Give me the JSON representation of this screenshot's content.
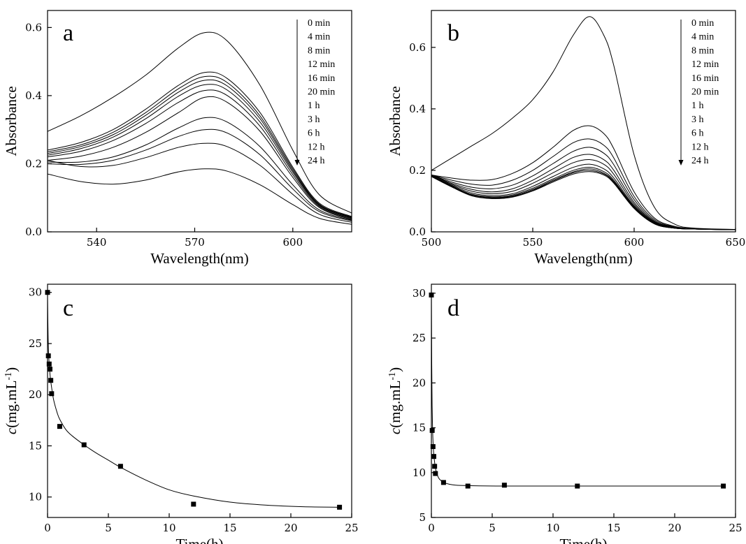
{
  "chart_data": [
    {
      "panel": "a",
      "type": "line",
      "xlabel": "Wavelength(nm)",
      "ylabel": "Absorbance",
      "xlim": [
        525,
        618
      ],
      "ylim": [
        0,
        0.65
      ],
      "xticks": [
        540,
        570,
        600
      ],
      "yticks": [
        0.0,
        0.2,
        0.4,
        0.6
      ],
      "legend": [
        "0 min",
        "4 min",
        "8 min",
        "12 min",
        "16 min",
        "20 min",
        "1 h",
        "3 h",
        "6 h",
        "12 h",
        "24 h"
      ],
      "legend_placement": "top-right",
      "legend_arrow": "down",
      "x": [
        525,
        535,
        545,
        555,
        565,
        573,
        580,
        590,
        600,
        608,
        618
      ],
      "series": [
        {
          "values": [
            0.295,
            0.34,
            0.395,
            0.46,
            0.54,
            0.585,
            0.56,
            0.43,
            0.24,
            0.11,
            0.055
          ]
        },
        {
          "values": [
            0.24,
            0.262,
            0.3,
            0.36,
            0.43,
            0.468,
            0.45,
            0.35,
            0.19,
            0.085,
            0.045
          ]
        },
        {
          "values": [
            0.235,
            0.255,
            0.292,
            0.35,
            0.42,
            0.456,
            0.438,
            0.34,
            0.185,
            0.082,
            0.043
          ]
        },
        {
          "values": [
            0.23,
            0.25,
            0.285,
            0.342,
            0.41,
            0.445,
            0.428,
            0.332,
            0.18,
            0.08,
            0.042
          ]
        },
        {
          "values": [
            0.225,
            0.244,
            0.278,
            0.332,
            0.398,
            0.432,
            0.416,
            0.322,
            0.175,
            0.078,
            0.04
          ]
        },
        {
          "values": [
            0.22,
            0.236,
            0.268,
            0.318,
            0.38,
            0.415,
            0.4,
            0.31,
            0.168,
            0.075,
            0.038
          ]
        },
        {
          "values": [
            0.21,
            0.222,
            0.248,
            0.292,
            0.35,
            0.395,
            0.38,
            0.295,
            0.16,
            0.072,
            0.036
          ]
        },
        {
          "values": [
            0.205,
            0.205,
            0.22,
            0.255,
            0.305,
            0.335,
            0.322,
            0.25,
            0.138,
            0.065,
            0.034
          ]
        },
        {
          "values": [
            0.2,
            0.198,
            0.21,
            0.24,
            0.28,
            0.3,
            0.29,
            0.226,
            0.126,
            0.06,
            0.032
          ]
        },
        {
          "values": [
            0.21,
            0.192,
            0.195,
            0.218,
            0.248,
            0.26,
            0.25,
            0.195,
            0.11,
            0.052,
            0.028
          ]
        },
        {
          "values": [
            0.17,
            0.148,
            0.14,
            0.152,
            0.176,
            0.185,
            0.178,
            0.138,
            0.08,
            0.04,
            0.022
          ]
        }
      ]
    },
    {
      "panel": "b",
      "type": "line",
      "xlabel": "Wavelength(nm)",
      "ylabel": "Absorbance",
      "xlim": [
        500,
        650
      ],
      "ylim": [
        0,
        0.72
      ],
      "xticks": [
        500,
        550,
        600,
        650
      ],
      "yticks": [
        0.0,
        0.2,
        0.4,
        0.6
      ],
      "legend": [
        "0 min",
        "4 min",
        "8 min",
        "12 min",
        "16 min",
        "20 min",
        "1 h",
        "3 h",
        "6 h",
        "12 h",
        "24 h"
      ],
      "legend_placement": "top-right",
      "legend_arrow": "down",
      "x": [
        500,
        510,
        520,
        530,
        540,
        550,
        560,
        570,
        578,
        585,
        590,
        600,
        610,
        620,
        630,
        650
      ],
      "series": [
        {
          "values": [
            0.2,
            0.24,
            0.28,
            0.32,
            0.37,
            0.43,
            0.52,
            0.64,
            0.7,
            0.64,
            0.54,
            0.25,
            0.08,
            0.025,
            0.012,
            0.008
          ]
        },
        {
          "values": [
            0.185,
            0.175,
            0.168,
            0.17,
            0.19,
            0.225,
            0.275,
            0.33,
            0.345,
            0.32,
            0.27,
            0.13,
            0.045,
            0.018,
            0.01,
            0.007
          ]
        },
        {
          "values": [
            0.185,
            0.168,
            0.155,
            0.152,
            0.168,
            0.2,
            0.245,
            0.29,
            0.302,
            0.282,
            0.24,
            0.115,
            0.04,
            0.016,
            0.01,
            0.007
          ]
        },
        {
          "values": [
            0.185,
            0.162,
            0.145,
            0.14,
            0.152,
            0.182,
            0.222,
            0.262,
            0.275,
            0.256,
            0.218,
            0.105,
            0.036,
            0.015,
            0.01,
            0.007
          ]
        },
        {
          "values": [
            0.185,
            0.158,
            0.138,
            0.13,
            0.14,
            0.168,
            0.205,
            0.242,
            0.252,
            0.235,
            0.2,
            0.096,
            0.033,
            0.014,
            0.009,
            0.007
          ]
        },
        {
          "values": [
            0.185,
            0.155,
            0.132,
            0.124,
            0.132,
            0.158,
            0.192,
            0.225,
            0.235,
            0.22,
            0.187,
            0.09,
            0.031,
            0.013,
            0.009,
            0.007
          ]
        },
        {
          "values": [
            0.183,
            0.152,
            0.126,
            0.118,
            0.124,
            0.148,
            0.18,
            0.21,
            0.22,
            0.205,
            0.175,
            0.085,
            0.029,
            0.013,
            0.009,
            0.007
          ]
        },
        {
          "values": [
            0.182,
            0.15,
            0.122,
            0.114,
            0.12,
            0.142,
            0.172,
            0.2,
            0.21,
            0.196,
            0.168,
            0.082,
            0.028,
            0.012,
            0.009,
            0.007
          ]
        },
        {
          "values": [
            0.181,
            0.148,
            0.12,
            0.112,
            0.117,
            0.138,
            0.168,
            0.195,
            0.205,
            0.191,
            0.164,
            0.08,
            0.027,
            0.012,
            0.009,
            0.007
          ]
        },
        {
          "values": [
            0.18,
            0.147,
            0.118,
            0.11,
            0.115,
            0.135,
            0.165,
            0.192,
            0.2,
            0.188,
            0.161,
            0.078,
            0.026,
            0.012,
            0.009,
            0.007
          ]
        },
        {
          "values": [
            0.18,
            0.146,
            0.117,
            0.108,
            0.113,
            0.133,
            0.162,
            0.188,
            0.196,
            0.185,
            0.158,
            0.076,
            0.026,
            0.012,
            0.009,
            0.007
          ]
        }
      ]
    },
    {
      "panel": "c",
      "type": "scatter",
      "xlabel": "Time(h)",
      "ylabel_italic": "c",
      "ylabel": "(mg.mL",
      "ylabel_sup": "-1",
      "ylabel_close": ")",
      "xlim": [
        0,
        25
      ],
      "ylim": [
        8,
        30.8
      ],
      "xticks": [
        0,
        5,
        10,
        15,
        20,
        25
      ],
      "yticks": [
        10,
        15,
        20,
        25,
        30
      ],
      "points": {
        "x": [
          0,
          0.067,
          0.133,
          0.2,
          0.267,
          0.333,
          1,
          3,
          6,
          12,
          24
        ],
        "y": [
          30,
          23.8,
          23.0,
          22.5,
          21.4,
          20.1,
          16.9,
          15.1,
          13.0,
          9.3,
          9.0
        ]
      },
      "fit": {
        "x": [
          0,
          0.05,
          0.1,
          0.2,
          0.3,
          0.5,
          0.8,
          1,
          1.5,
          2,
          3,
          4,
          5,
          6,
          8,
          10,
          12,
          15,
          18,
          21,
          24
        ],
        "y": [
          29.5,
          25.5,
          23.7,
          22.0,
          21.0,
          19.5,
          18.2,
          17.6,
          16.6,
          16.0,
          15.1,
          14.3,
          13.6,
          12.9,
          11.7,
          10.7,
          10.1,
          9.5,
          9.2,
          9.05,
          9.0
        ]
      }
    },
    {
      "panel": "d",
      "type": "scatter",
      "xlabel": "Time(h)",
      "ylabel_italic": "c",
      "ylabel": "(mg.mL",
      "ylabel_sup": "-1",
      "ylabel_close": ")",
      "xlim": [
        0,
        25
      ],
      "ylim": [
        5,
        31
      ],
      "xticks": [
        0,
        5,
        10,
        15,
        20,
        25
      ],
      "yticks": [
        5,
        10,
        15,
        20,
        25,
        30
      ],
      "points": {
        "x": [
          0,
          0.067,
          0.133,
          0.2,
          0.267,
          0.333,
          1,
          3,
          6,
          12,
          24
        ],
        "y": [
          29.8,
          14.7,
          12.9,
          11.8,
          10.7,
          9.9,
          8.9,
          8.5,
          8.6,
          8.5,
          8.5
        ]
      },
      "fit": {
        "x": [
          0,
          0.03,
          0.06,
          0.1,
          0.15,
          0.2,
          0.3,
          0.4,
          0.6,
          0.8,
          1,
          1.5,
          2,
          3,
          6,
          12,
          24
        ],
        "y": [
          29.8,
          22.0,
          17.5,
          14.8,
          13.0,
          12.0,
          10.8,
          10.1,
          9.4,
          9.1,
          8.9,
          8.7,
          8.6,
          8.55,
          8.5,
          8.5,
          8.5
        ]
      }
    }
  ]
}
